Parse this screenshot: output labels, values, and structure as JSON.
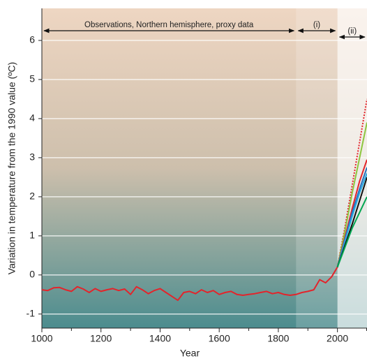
{
  "chart_data": {
    "type": "line",
    "xlabel": "Year",
    "ylabel": "Variation in temperature from the 1990 value (ºC)",
    "xlim": [
      1000,
      2100
    ],
    "ylim": [
      -1.36,
      6.82
    ],
    "xticks": [
      1000,
      1200,
      1400,
      1600,
      1800,
      2000
    ],
    "xticks_minor": [
      1100,
      1300,
      1500,
      1700,
      1900,
      2100
    ],
    "yticks": [
      -1,
      0,
      1,
      2,
      3,
      4,
      5,
      6
    ],
    "grid": true,
    "annotations": [
      {
        "text": "Observations, Northern hemisphere, proxy data",
        "x": [
          1000,
          1860
        ]
      },
      {
        "text": "(i)",
        "x": [
          1860,
          2000
        ]
      },
      {
        "text": "(ii)",
        "x": [
          2000,
          2100
        ]
      }
    ],
    "series": [
      {
        "color": "#e3242b",
        "dash": false,
        "x": [
          1000,
          1020,
          1040,
          1060,
          1080,
          1100,
          1120,
          1140,
          1160,
          1180,
          1200,
          1220,
          1240,
          1260,
          1280,
          1300,
          1320,
          1340,
          1360,
          1380,
          1400,
          1420,
          1440,
          1460,
          1480,
          1500,
          1520,
          1540,
          1560,
          1580,
          1600,
          1620,
          1640,
          1660,
          1680,
          1700,
          1720,
          1740,
          1760,
          1780,
          1800,
          1820,
          1840,
          1860,
          1880,
          1900,
          1920,
          1940,
          1960,
          1980,
          2000
        ],
        "values": [
          -0.38,
          -0.4,
          -0.33,
          -0.32,
          -0.38,
          -0.42,
          -0.3,
          -0.36,
          -0.45,
          -0.35,
          -0.42,
          -0.38,
          -0.35,
          -0.4,
          -0.36,
          -0.5,
          -0.3,
          -0.38,
          -0.48,
          -0.4,
          -0.35,
          -0.45,
          -0.55,
          -0.65,
          -0.45,
          -0.42,
          -0.48,
          -0.38,
          -0.45,
          -0.4,
          -0.5,
          -0.45,
          -0.42,
          -0.5,
          -0.52,
          -0.5,
          -0.48,
          -0.45,
          -0.42,
          -0.48,
          -0.45,
          -0.5,
          -0.52,
          -0.5,
          -0.45,
          -0.42,
          -0.38,
          -0.12,
          -0.2,
          -0.05,
          0.2
        ]
      },
      {
        "color": "#e3242b",
        "dash": true,
        "x": [
          2000,
          2025,
          2050,
          2075,
          2100
        ],
        "values": [
          0.2,
          1.2,
          2.3,
          3.4,
          4.5
        ]
      },
      {
        "color": "#8dc63f",
        "dash": false,
        "x": [
          2000,
          2025,
          2050,
          2075,
          2100
        ],
        "values": [
          0.2,
          1.1,
          2.1,
          3.0,
          3.9
        ]
      },
      {
        "color": "#e3242b",
        "dash": false,
        "x": [
          2000,
          2025,
          2050,
          2075,
          2100
        ],
        "values": [
          0.2,
          0.95,
          1.7,
          2.4,
          2.95
        ]
      },
      {
        "color": "#2a6ebb",
        "dash": false,
        "x": [
          2000,
          2025,
          2050,
          2075,
          2100
        ],
        "values": [
          0.2,
          0.9,
          1.6,
          2.2,
          2.75
        ]
      },
      {
        "color": "#29abe2",
        "dash": false,
        "x": [
          2000,
          2025,
          2050,
          2075,
          2100
        ],
        "values": [
          0.2,
          0.85,
          1.5,
          2.1,
          2.6
        ]
      },
      {
        "color": "#111111",
        "dash": false,
        "x": [
          2000,
          2025,
          2050,
          2075,
          2100
        ],
        "values": [
          0.2,
          0.75,
          1.3,
          1.9,
          2.5
        ]
      },
      {
        "color": "#00a651",
        "dash": false,
        "x": [
          2000,
          2025,
          2050,
          2075,
          2100
        ],
        "values": [
          0.2,
          0.7,
          1.2,
          1.6,
          2.0
        ]
      }
    ]
  }
}
